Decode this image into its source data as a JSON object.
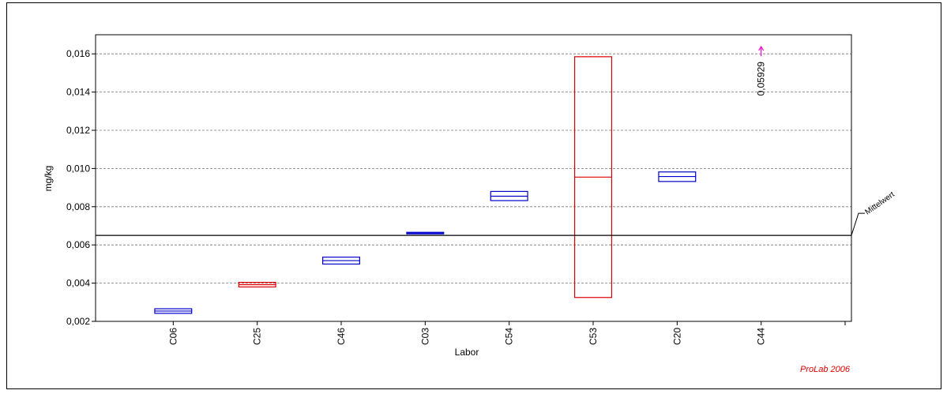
{
  "chart_data": {
    "type": "box",
    "xlabel": "Labor",
    "ylabel": "mg/kg",
    "ylim": [
      0.002,
      0.017
    ],
    "yticks": [
      0.002,
      0.004,
      0.006,
      0.008,
      0.01,
      0.012,
      0.014,
      0.016
    ],
    "ytick_labels": [
      "0,002",
      "0,004",
      "0,006",
      "0,008",
      "0,010",
      "0,012",
      "0,014",
      "0,016"
    ],
    "categories": [
      "C06",
      "C25",
      "C46",
      "C03",
      "C54",
      "C53",
      "C20",
      "C44"
    ],
    "boxes": [
      {
        "label": "C06",
        "low": 0.00242,
        "mid": 0.00254,
        "high": 0.00266,
        "color": "#0000cc"
      },
      {
        "label": "C25",
        "low": 0.0038,
        "mid": 0.00392,
        "high": 0.00404,
        "color": "#dd0000"
      },
      {
        "label": "C46",
        "low": 0.005,
        "mid": 0.00518,
        "high": 0.00536,
        "color": "#0000cc"
      },
      {
        "label": "C03",
        "low": 0.00658,
        "mid": 0.00662,
        "high": 0.00666,
        "color": "#0000cc"
      },
      {
        "label": "C54",
        "low": 0.00832,
        "mid": 0.00855,
        "high": 0.0088,
        "color": "#0000cc"
      },
      {
        "label": "C53",
        "low": 0.00325,
        "mid": 0.00955,
        "high": 0.01585,
        "color": "#dd0000"
      },
      {
        "label": "C20",
        "low": 0.00932,
        "mid": 0.00958,
        "high": 0.00982,
        "color": "#0000cc"
      }
    ],
    "outlier": {
      "label": "C44",
      "value_text": "0,05929",
      "color": "#ff00cc"
    },
    "reference_line": {
      "value": 0.0065,
      "label": "Mittelwert"
    },
    "grid": true,
    "credit": "ProLab 2006"
  }
}
